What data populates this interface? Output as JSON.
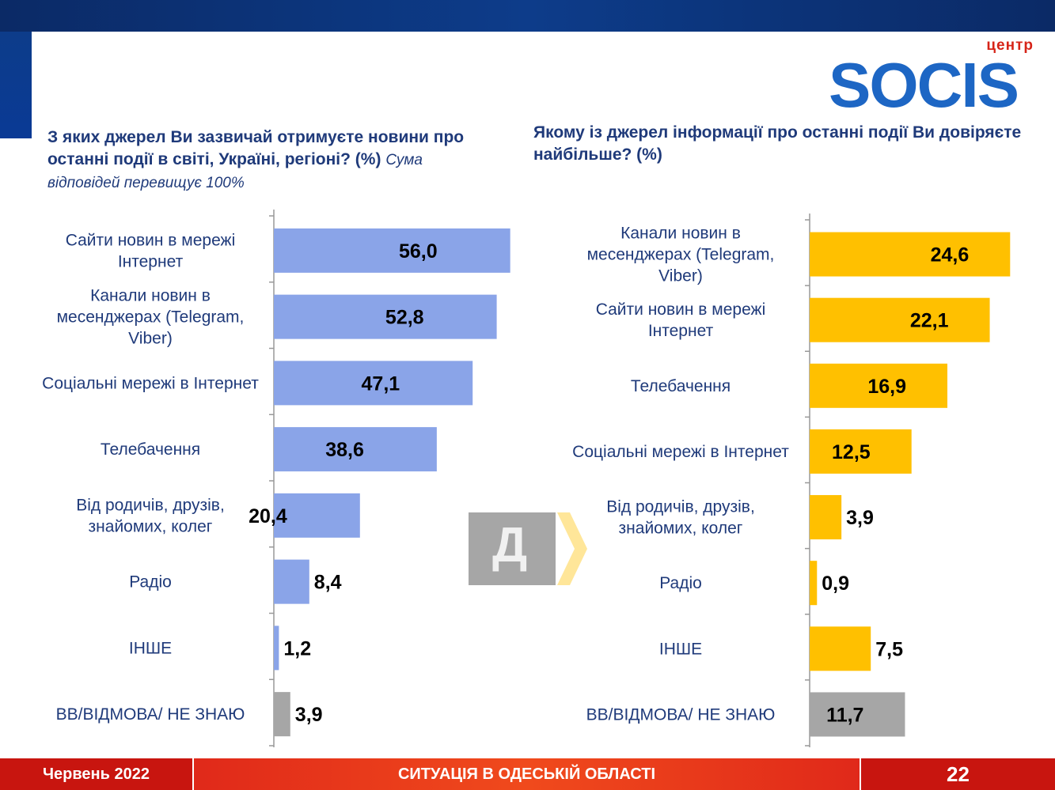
{
  "logo": {
    "small_text": "центр",
    "brand_text": "SOCIS"
  },
  "left": {
    "title": "З яких джерел Ви зазвичай отримуєте новини про останні події в світі, Україні, регіоні? (%)",
    "note": "Сума відповідей перевищує 100%"
  },
  "right": {
    "title": "Якому із джерел інформації про останні події Ви довіряєте найбільше? (%)"
  },
  "arrow": {
    "letter": "Д"
  },
  "colors": {
    "blue_bar": "#8aa4e8",
    "yellow_bar": "#ffc000",
    "gray_bar": "#a6a6a6",
    "title": "#1f3a7a"
  },
  "chart_data": [
    {
      "type": "bar",
      "orientation": "horizontal",
      "title": "З яких джерел Ви зазвичай отримуєте новини про останні події в світі, Україні, регіоні? (%)",
      "categories": [
        [
          "Сайти новин в мережі",
          "Інтернет"
        ],
        [
          "Канали новин в",
          "месенджерах (Telegram,",
          "Viber)"
        ],
        [
          "Соціальні мережі в Інтернет"
        ],
        [
          "Телебачення"
        ],
        [
          "Від родичів, друзів,",
          "знайомих, колег"
        ],
        [
          "Радіо"
        ],
        [
          "ІНШЕ"
        ],
        [
          "ВВ/ВІДМОВА/ НЕ ЗНАЮ"
        ]
      ],
      "values": [
        56.0,
        52.8,
        47.1,
        38.6,
        20.4,
        8.4,
        1.2,
        3.9
      ],
      "labels": [
        "56,0",
        "52,8",
        "47,1",
        "38,6",
        "20,4",
        "8,4",
        "1,2",
        "3,9"
      ],
      "bar_colors": [
        "blue",
        "blue",
        "blue",
        "blue",
        "blue",
        "blue",
        "blue",
        "gray"
      ],
      "xlim": [
        0,
        60
      ]
    },
    {
      "type": "bar",
      "orientation": "horizontal",
      "title": "Якому із джерел інформації про останні події Ви довіряєте найбільше? (%)",
      "categories": [
        [
          "Канали новин в",
          "месенджерах (Telegram,",
          "Viber)"
        ],
        [
          "Сайти новин в мережі",
          "Інтернет"
        ],
        [
          "Телебачення"
        ],
        [
          "Соціальні мережі в Інтернет"
        ],
        [
          "Від родичів, друзів,",
          "знайомих, колег"
        ],
        [
          "Радіо"
        ],
        [
          "ІНШЕ"
        ],
        [
          "ВВ/ВІДМОВА/ НЕ ЗНАЮ"
        ]
      ],
      "values": [
        24.6,
        22.1,
        16.9,
        12.5,
        3.9,
        0.9,
        7.5,
        11.7
      ],
      "labels": [
        "24,6",
        "22,1",
        "16,9",
        "12,5",
        "3,9",
        "0,9",
        "7,5",
        "11,7"
      ],
      "bar_colors": [
        "yellow",
        "yellow",
        "yellow",
        "yellow",
        "yellow",
        "yellow",
        "yellow",
        "gray"
      ],
      "xlim": [
        0,
        27
      ]
    }
  ],
  "footer": {
    "date": "Червень 2022",
    "title": "СИТУАЦІЯ В ОДЕСЬКІЙ ОБЛАСТІ",
    "page": "22"
  }
}
